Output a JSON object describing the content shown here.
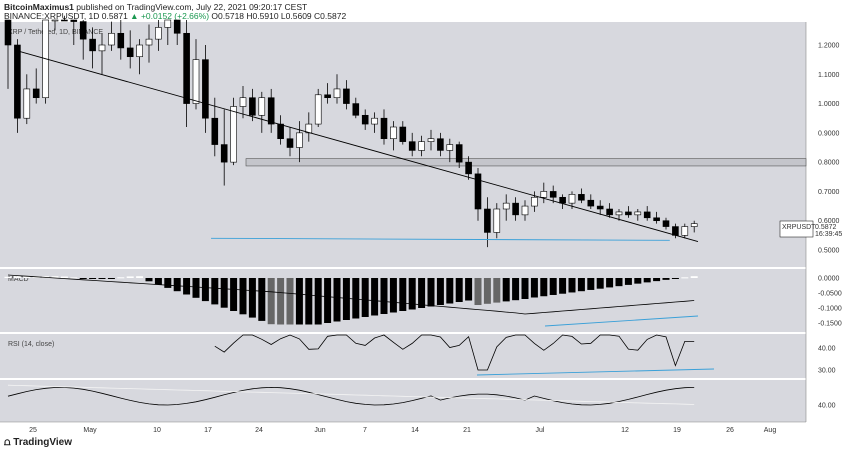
{
  "header": {
    "author": "BitcoinMaximus1",
    "published": "published on TradingView.com, July 22, 2021 09:20:17 CEST",
    "symbol_line": "BINANCE:XRPUSDT, 1D",
    "change_value": "+0.0152 (+2.66%)",
    "o_label": "O",
    "o": "0.5718",
    "h_label": "H",
    "h": "0.5910",
    "l_label": "L",
    "l": "0.5609",
    "c_label": "C",
    "c": "0.5872",
    "last": "0.5871"
  },
  "pane_title": "XRP / Tethered, 1D, BINANCE",
  "price_tag": {
    "symbol": "XRPUSDT",
    "value": "0.5872",
    "countdown": "16:39:45"
  },
  "footer": {
    "brand": "TradingView"
  },
  "colors": {
    "pane_bg": "#d7d8de",
    "up": "#ffffff",
    "down": "#000000",
    "support": "#3aa0d8",
    "trend": "#000000"
  },
  "chart_data": [
    {
      "type": "candlestick",
      "title": "",
      "y_ticks": [
        "1.2000",
        "1.1000",
        "1.0000",
        "0.9000",
        "0.8000",
        "0.7000",
        "0.6000",
        "0.5000"
      ],
      "x_ticks": [
        "25",
        "May",
        "10",
        "17",
        "24",
        "Jun",
        "7",
        "14",
        "21",
        "Jul",
        "12",
        "19",
        "26",
        "Aug"
      ],
      "ohlc_approx": [
        [
          1.3,
          1.35,
          1.05,
          1.2
        ],
        [
          1.2,
          1.22,
          0.9,
          0.95
        ],
        [
          0.95,
          1.1,
          0.93,
          1.05
        ],
        [
          1.05,
          1.12,
          1.0,
          1.02
        ],
        [
          1.02,
          1.35,
          1.0,
          1.3
        ],
        [
          1.3,
          1.55,
          1.25,
          1.5
        ],
        [
          1.45,
          1.48,
          1.3,
          1.35
        ],
        [
          1.35,
          1.4,
          1.2,
          1.28
        ],
        [
          1.28,
          1.3,
          1.15,
          1.22
        ],
        [
          1.22,
          1.26,
          1.12,
          1.18
        ],
        [
          1.18,
          1.24,
          1.1,
          1.2
        ],
        [
          1.2,
          1.28,
          1.18,
          1.24
        ],
        [
          1.24,
          1.3,
          1.15,
          1.19
        ],
        [
          1.19,
          1.25,
          1.12,
          1.16
        ],
        [
          1.16,
          1.22,
          1.1,
          1.2
        ],
        [
          1.2,
          1.27,
          1.14,
          1.22
        ],
        [
          1.22,
          1.3,
          1.18,
          1.26
        ],
        [
          1.26,
          1.36,
          1.2,
          1.3
        ],
        [
          1.3,
          1.35,
          1.2,
          1.24
        ],
        [
          1.24,
          1.3,
          0.92,
          1.0
        ],
        [
          1.0,
          1.22,
          0.98,
          1.15
        ],
        [
          1.15,
          1.2,
          0.9,
          0.95
        ],
        [
          0.95,
          1.02,
          0.82,
          0.86
        ],
        [
          0.86,
          0.98,
          0.72,
          0.8
        ],
        [
          0.8,
          1.02,
          0.79,
          0.99
        ],
        [
          0.99,
          1.06,
          0.95,
          1.02
        ],
        [
          1.02,
          1.05,
          0.94,
          0.96
        ],
        [
          0.96,
          1.04,
          0.9,
          1.02
        ],
        [
          1.02,
          1.05,
          0.9,
          0.93
        ],
        [
          0.93,
          0.96,
          0.86,
          0.88
        ],
        [
          0.88,
          0.92,
          0.82,
          0.85
        ],
        [
          0.85,
          0.94,
          0.8,
          0.9
        ],
        [
          0.9,
          0.97,
          0.87,
          0.93
        ],
        [
          0.93,
          1.05,
          0.92,
          1.03
        ],
        [
          1.03,
          1.07,
          1.0,
          1.02
        ],
        [
          1.02,
          1.1,
          1.0,
          1.05
        ],
        [
          1.05,
          1.08,
          0.98,
          1.0
        ],
        [
          1.0,
          1.02,
          0.95,
          0.96
        ],
        [
          0.96,
          0.98,
          0.91,
          0.93
        ],
        [
          0.93,
          0.97,
          0.9,
          0.95
        ],
        [
          0.95,
          0.98,
          0.86,
          0.88
        ],
        [
          0.88,
          0.94,
          0.84,
          0.92
        ],
        [
          0.92,
          0.94,
          0.86,
          0.87
        ],
        [
          0.87,
          0.9,
          0.82,
          0.84
        ],
        [
          0.84,
          0.89,
          0.82,
          0.87
        ],
        [
          0.87,
          0.91,
          0.84,
          0.88
        ],
        [
          0.88,
          0.9,
          0.82,
          0.84
        ],
        [
          0.84,
          0.88,
          0.8,
          0.86
        ],
        [
          0.86,
          0.87,
          0.78,
          0.8
        ],
        [
          0.8,
          0.82,
          0.74,
          0.76
        ],
        [
          0.76,
          0.78,
          0.6,
          0.64
        ],
        [
          0.64,
          0.68,
          0.51,
          0.56
        ],
        [
          0.56,
          0.66,
          0.54,
          0.64
        ],
        [
          0.64,
          0.69,
          0.6,
          0.66
        ],
        [
          0.66,
          0.68,
          0.6,
          0.62
        ],
        [
          0.62,
          0.67,
          0.6,
          0.65
        ],
        [
          0.65,
          0.7,
          0.63,
          0.68
        ],
        [
          0.68,
          0.73,
          0.66,
          0.7
        ],
        [
          0.7,
          0.72,
          0.66,
          0.68
        ],
        [
          0.68,
          0.69,
          0.64,
          0.66
        ],
        [
          0.66,
          0.7,
          0.64,
          0.69
        ],
        [
          0.69,
          0.71,
          0.66,
          0.67
        ],
        [
          0.67,
          0.69,
          0.64,
          0.65
        ],
        [
          0.65,
          0.67,
          0.62,
          0.64
        ],
        [
          0.64,
          0.66,
          0.61,
          0.62
        ],
        [
          0.62,
          0.64,
          0.6,
          0.63
        ],
        [
          0.63,
          0.65,
          0.61,
          0.62
        ],
        [
          0.62,
          0.64,
          0.6,
          0.63
        ],
        [
          0.63,
          0.65,
          0.6,
          0.61
        ],
        [
          0.61,
          0.63,
          0.59,
          0.6
        ],
        [
          0.6,
          0.61,
          0.57,
          0.58
        ],
        [
          0.58,
          0.59,
          0.54,
          0.55
        ],
        [
          0.55,
          0.59,
          0.54,
          0.58
        ],
        [
          0.58,
          0.6,
          0.56,
          0.59
        ]
      ],
      "trendline": [
        [
          0.99,
          1.18
        ],
        [
          73.4,
          0.529
        ]
      ],
      "support_line": [
        [
          21.6,
          0.54
        ],
        [
          70.4,
          0.533
        ]
      ],
      "range_band": [
        0.787,
        0.812
      ]
    },
    {
      "type": "bar",
      "title": "MACD",
      "y_ticks": [
        "0.0000",
        "-0.0500",
        "-0.1000",
        "-0.1500"
      ]
    },
    {
      "type": "line",
      "title": "RSI (14, close)",
      "y_ticks": [
        "40.00",
        "30.00"
      ]
    },
    {
      "type": "line",
      "title": "",
      "y_ticks": [
        "40.00"
      ]
    }
  ]
}
